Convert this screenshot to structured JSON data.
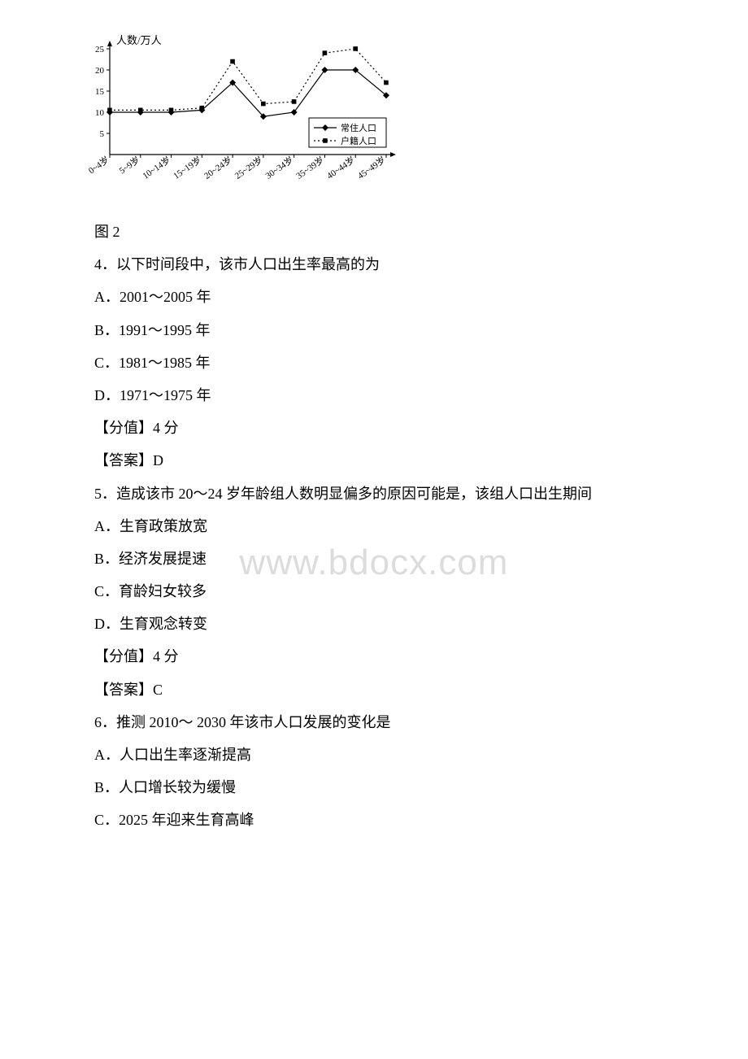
{
  "watermark": "www.bdocx.com",
  "chart": {
    "type": "line",
    "y_axis_title": "人数/万人",
    "ylim": [
      0,
      25
    ],
    "yticks": [
      5,
      10,
      15,
      20,
      25
    ],
    "categories": [
      "0~4岁",
      "5~9岁",
      "10~14岁",
      "15~19岁",
      "20~24岁",
      "25~29岁",
      "30~34岁",
      "35~39岁",
      "40~44岁",
      "45~49岁"
    ],
    "series": [
      {
        "name": "常住人口",
        "marker": "diamond",
        "line_dash": "none",
        "color": "#000000",
        "values": [
          10,
          10,
          10,
          10.5,
          17,
          9,
          10,
          20,
          20,
          14
        ]
      },
      {
        "name": "户籍人口",
        "marker": "square",
        "line_dash": "2,3",
        "color": "#000000",
        "values": [
          10.5,
          10.5,
          10.5,
          11,
          22,
          12,
          12.5,
          24,
          25,
          17
        ]
      }
    ],
    "background_color": "#ffffff",
    "axis_color": "#000000",
    "axis_width": 1.2,
    "marker_size": 4,
    "line_width": 1.2,
    "label_fontsize": 11,
    "title_fontsize": 13,
    "tick_fontsize": 11
  },
  "fig_label": "图 2",
  "q4": {
    "stem": "4．以下时间段中，该市人口出生率最高的为",
    "A": "A．2001～2005 年",
    "B": "B．1991～1995 年",
    "C": "C．1981～1985 年",
    "D": "D．1971～1975 年",
    "score": "【分值】4 分",
    "answer": "【答案】D"
  },
  "q5": {
    "stem": "5．造成该市 20～24 岁年龄组人数明显偏多的原因可能是，该组人口出生期间",
    "A": "A．生育政策放宽",
    "B": "B．经济发展提速",
    "C": "C．育龄妇女较多",
    "D": "D．生育观念转变",
    "score": "【分值】4 分",
    "answer": "【答案】C"
  },
  "q6": {
    "stem": "6．推测 2010～ 2030 年该市人口发展的变化是",
    "A": "A．人口出生率逐渐提高",
    "B": "B．人口增长较为缓慢",
    "C": "C．2025 年迎来生育高峰"
  }
}
